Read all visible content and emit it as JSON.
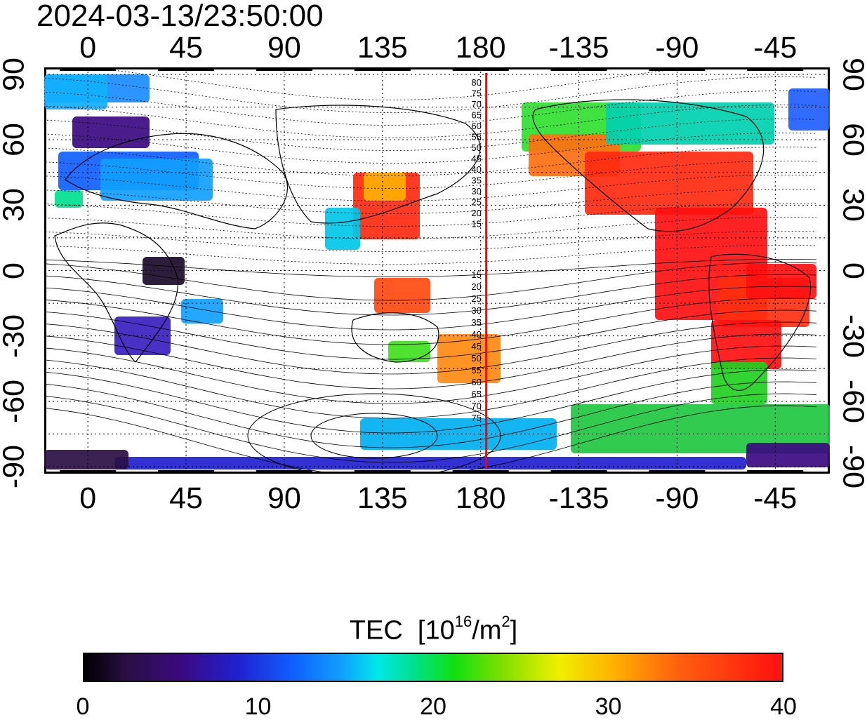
{
  "timestamp": "2024-03-13/23:50:00",
  "top_lon_labels": [
    "0",
    "45",
    "90",
    "135",
    "180",
    "-135",
    "-90",
    "-45"
  ],
  "bottom_lon_labels": [
    "0",
    "45",
    "90",
    "135",
    "180",
    "-135",
    "-90",
    "-45"
  ],
  "left_lat_labels": [
    "90",
    "60",
    "30",
    "0",
    "-30",
    "-60",
    "-90"
  ],
  "right_lat_labels": [
    "90",
    "60",
    "30",
    "0",
    "-30",
    "-60",
    "-90"
  ],
  "contour_labels_north": [
    "80",
    "75",
    "70",
    "65",
    "60",
    "55",
    "50",
    "45",
    "40",
    "35",
    "30",
    "25",
    "20",
    "15"
  ],
  "contour_labels_south": [
    "15",
    "20",
    "25",
    "30",
    "35",
    "40",
    "45",
    "50",
    "55",
    "60",
    "65",
    "70",
    "75"
  ],
  "colorbar": {
    "title": "TEC",
    "unit_prefix": "[10",
    "unit_exp": "16",
    "unit_mid": "/m",
    "unit_exp2": "2",
    "unit_suffix": "]",
    "min": 0,
    "max": 40,
    "tick_labels": [
      "0",
      "10",
      "20",
      "30",
      "40"
    ],
    "colors": [
      "#000000",
      "#3a0a80",
      "#1060ff",
      "#00e8e8",
      "#10e010",
      "#f0f000",
      "#ff6010",
      "#ff1010"
    ]
  },
  "map": {
    "lon_ticks": [
      0,
      45,
      90,
      135,
      180,
      -135,
      -90,
      -45
    ],
    "lat_ticks": [
      90,
      60,
      30,
      0,
      -30,
      -60,
      -90
    ],
    "terminator_lon": 180,
    "terminator_color": "#ff0000",
    "gridline_color": "#000000"
  }
}
